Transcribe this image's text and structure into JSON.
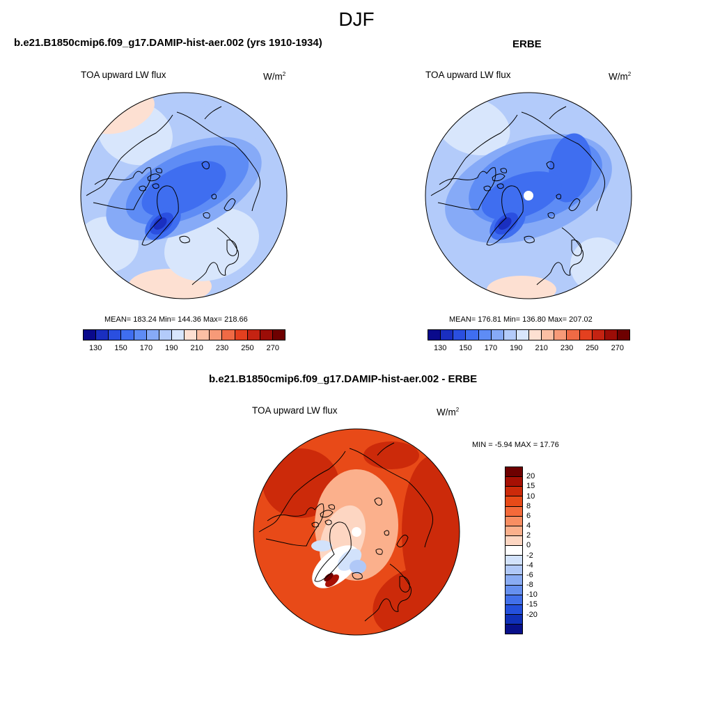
{
  "season": "DJF",
  "colors": {
    "abs_scale": [
      "#0a0a8c",
      "#1a2fc0",
      "#2a4fe0",
      "#3f6ef0",
      "#5e8cf5",
      "#86aaf7",
      "#b3cbfa",
      "#d8e6fc",
      "#fde0d2",
      "#fbbfa4",
      "#f79a78",
      "#ef6a45",
      "#e4401f",
      "#c42312",
      "#9c0d07",
      "#6e0000"
    ],
    "diff_scale": [
      "#6e0000",
      "#a61004",
      "#cc2a0a",
      "#e84a18",
      "#f46a3a",
      "#f88e62",
      "#fbb08c",
      "#fdd6c2",
      "#ffffff",
      "#d2e2fb",
      "#b0c8f7",
      "#8aacf3",
      "#6690ef",
      "#4270ea",
      "#2450dc",
      "#1030b8",
      "#08108a"
    ],
    "coast": "#000000"
  },
  "chart_data": [
    {
      "type": "heatmap",
      "projection": "north-polar-stereographic",
      "title": "b.e21.B1850cmip6.f09_g17.DAMIP-hist-aer.002 (yrs 1910-1934)",
      "subtitle": "TOA upward LW flux",
      "units_base": "W/m",
      "units_exp": "2",
      "stats": {
        "mean": 183.24,
        "min": 144.36,
        "max": 218.66
      },
      "stats_text": "MEAN= 183.24  Min= 144.36  Max= 218.66",
      "colorbar_ticks": [
        "130",
        "150",
        "170",
        "190",
        "210",
        "230",
        "250",
        "270"
      ],
      "pole_hole": false
    },
    {
      "type": "heatmap",
      "projection": "north-polar-stereographic",
      "title": "ERBE",
      "subtitle": "TOA upward LW flux",
      "units_base": "W/m",
      "units_exp": "2",
      "stats": {
        "mean": 176.81,
        "min": 136.8,
        "max": 207.02
      },
      "stats_text": "MEAN= 176.81  Min= 136.80  Max= 207.02",
      "colorbar_ticks": [
        "130",
        "150",
        "170",
        "190",
        "210",
        "230",
        "250",
        "270"
      ],
      "pole_hole": true
    },
    {
      "type": "heatmap",
      "projection": "north-polar-stereographic",
      "title": "b.e21.B1850cmip6.f09_g17.DAMIP-hist-aer.002 - ERBE",
      "subtitle": "TOA upward LW flux",
      "units_base": "W/m",
      "units_exp": "2",
      "stats": {
        "min": -5.94,
        "max": 17.76
      },
      "stats_text": "MIN =  -5.94 MAX =  17.76",
      "colorbar_ticks": [
        "20",
        "15",
        "10",
        "8",
        "6",
        "4",
        "2",
        "0",
        "-2",
        "-4",
        "-6",
        "-8",
        "-10",
        "-15",
        "-20"
      ],
      "pole_hole": true
    }
  ]
}
